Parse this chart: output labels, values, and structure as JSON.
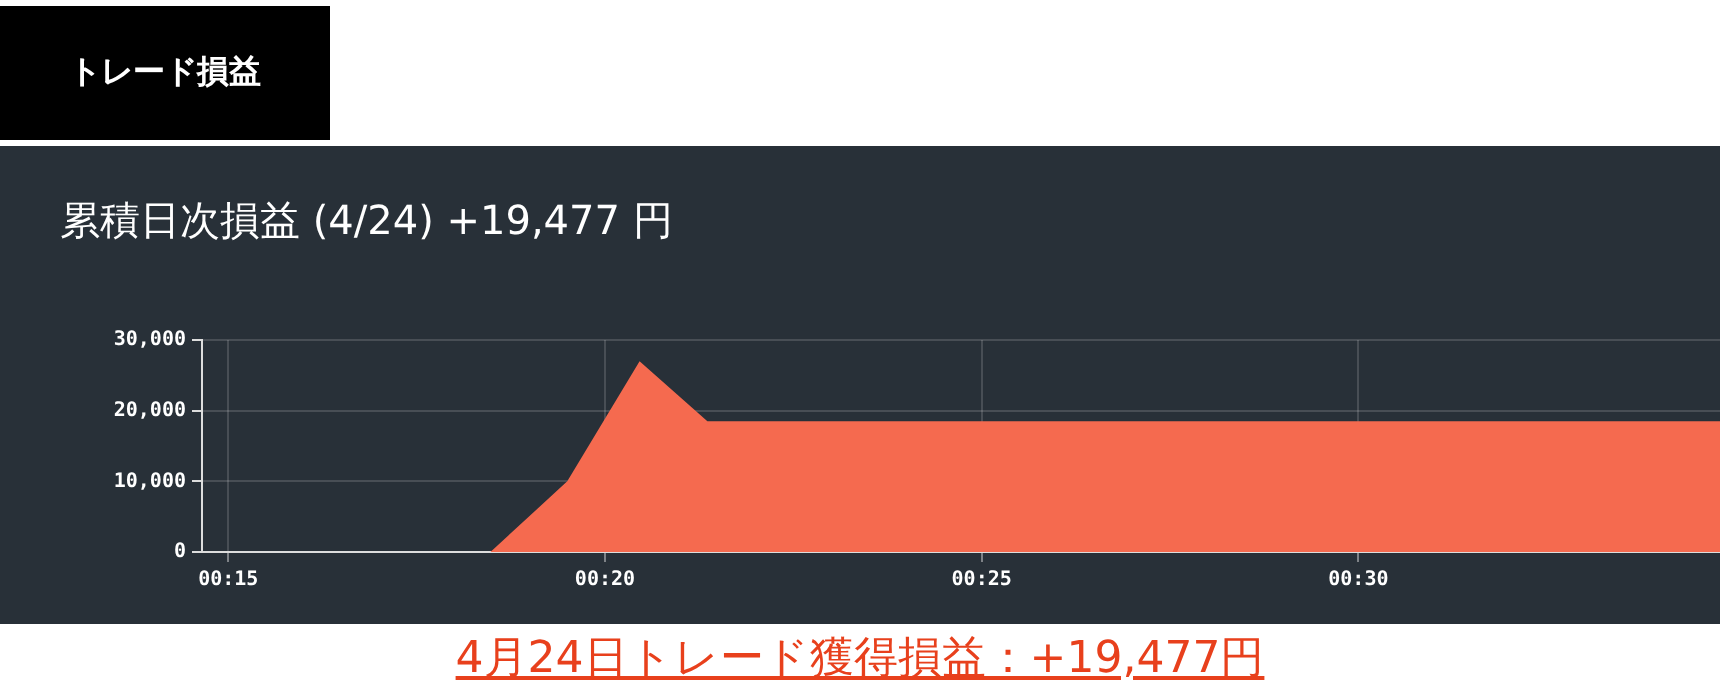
{
  "chart_data": {
    "type": "area",
    "title": "累積日次損益 (4/24) +19,477 円",
    "annotations": [
      "トレード損益",
      "4月24日トレード獲得損益：+19,477円"
    ],
    "series": [
      {
        "color": "#f56a4f",
        "x": [
          0.25,
          0.308,
          0.325,
          0.341,
          0.356,
          0.58
        ],
        "values": [
          0,
          0,
          10000,
          27000,
          18500,
          18500
        ]
      }
    ],
    "xlim": [
      0.2442,
      0.58
    ],
    "xticks": [
      {
        "value": 0.25,
        "label": "00:15"
      },
      {
        "value": 0.3333333,
        "label": "00:20"
      },
      {
        "value": 0.4166667,
        "label": "00:25"
      },
      {
        "value": 0.5,
        "label": "00:30"
      }
    ],
    "ylim": [
      0,
      30000
    ],
    "yticks": [
      {
        "value": 0,
        "label": "0"
      },
      {
        "value": 10000,
        "label": "10,000"
      },
      {
        "value": 20000,
        "label": "20,000"
      },
      {
        "value": 30000,
        "label": "30,000"
      }
    ],
    "grid": true,
    "legend": false
  }
}
